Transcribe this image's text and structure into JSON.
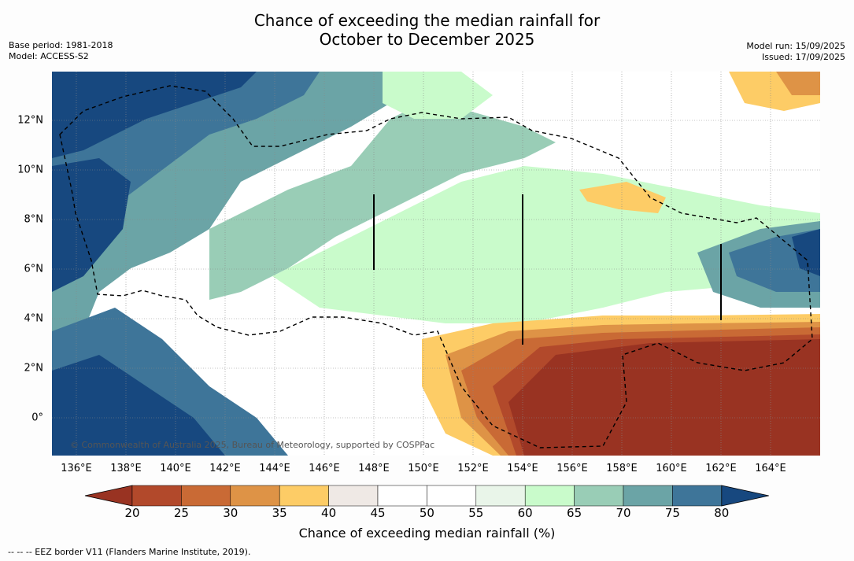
{
  "title": {
    "line1": "Chance of exceeding the median rainfall for",
    "line2": "October to December 2025"
  },
  "meta_left": {
    "base_period": "Base period: 1981-2018",
    "model": "Model: ACCESS-S2"
  },
  "meta_right": {
    "model_run": "Model run: 15/09/2025",
    "issued": "Issued: 17/09/2025"
  },
  "map": {
    "x_ticks": [
      "136°E",
      "138°E",
      "140°E",
      "142°E",
      "144°E",
      "146°E",
      "148°E",
      "150°E",
      "152°E",
      "154°E",
      "156°E",
      "158°E",
      "160°E",
      "162°E",
      "164°E"
    ],
    "y_ticks": [
      "12°N",
      "10°N",
      "8°N",
      "6°N",
      "4°N",
      "2°N",
      "0°"
    ],
    "copyright": "© Commonwealth of Australia 2025, Bureau of Meteorology, supported by COSPPac"
  },
  "colorbar": {
    "labels": [
      "20",
      "25",
      "30",
      "35",
      "40",
      "45",
      "50",
      "55",
      "60",
      "65",
      "70",
      "75",
      "80"
    ],
    "colors": [
      "#993322",
      "#b2492b",
      "#c96a35",
      "#de9346",
      "#fdcc66",
      "#efe9e5",
      "#ffffff",
      "#ffffff",
      "#e9f5e9",
      "#c9fbcb",
      "#99cdb6",
      "#6ba4a6",
      "#3e7599",
      "#17487f"
    ],
    "title": "Chance of exceeding median rainfall (%)"
  },
  "legend_note": "--  --  -- EEZ border V11 (Flanders Marine Institute, 2019)."
}
